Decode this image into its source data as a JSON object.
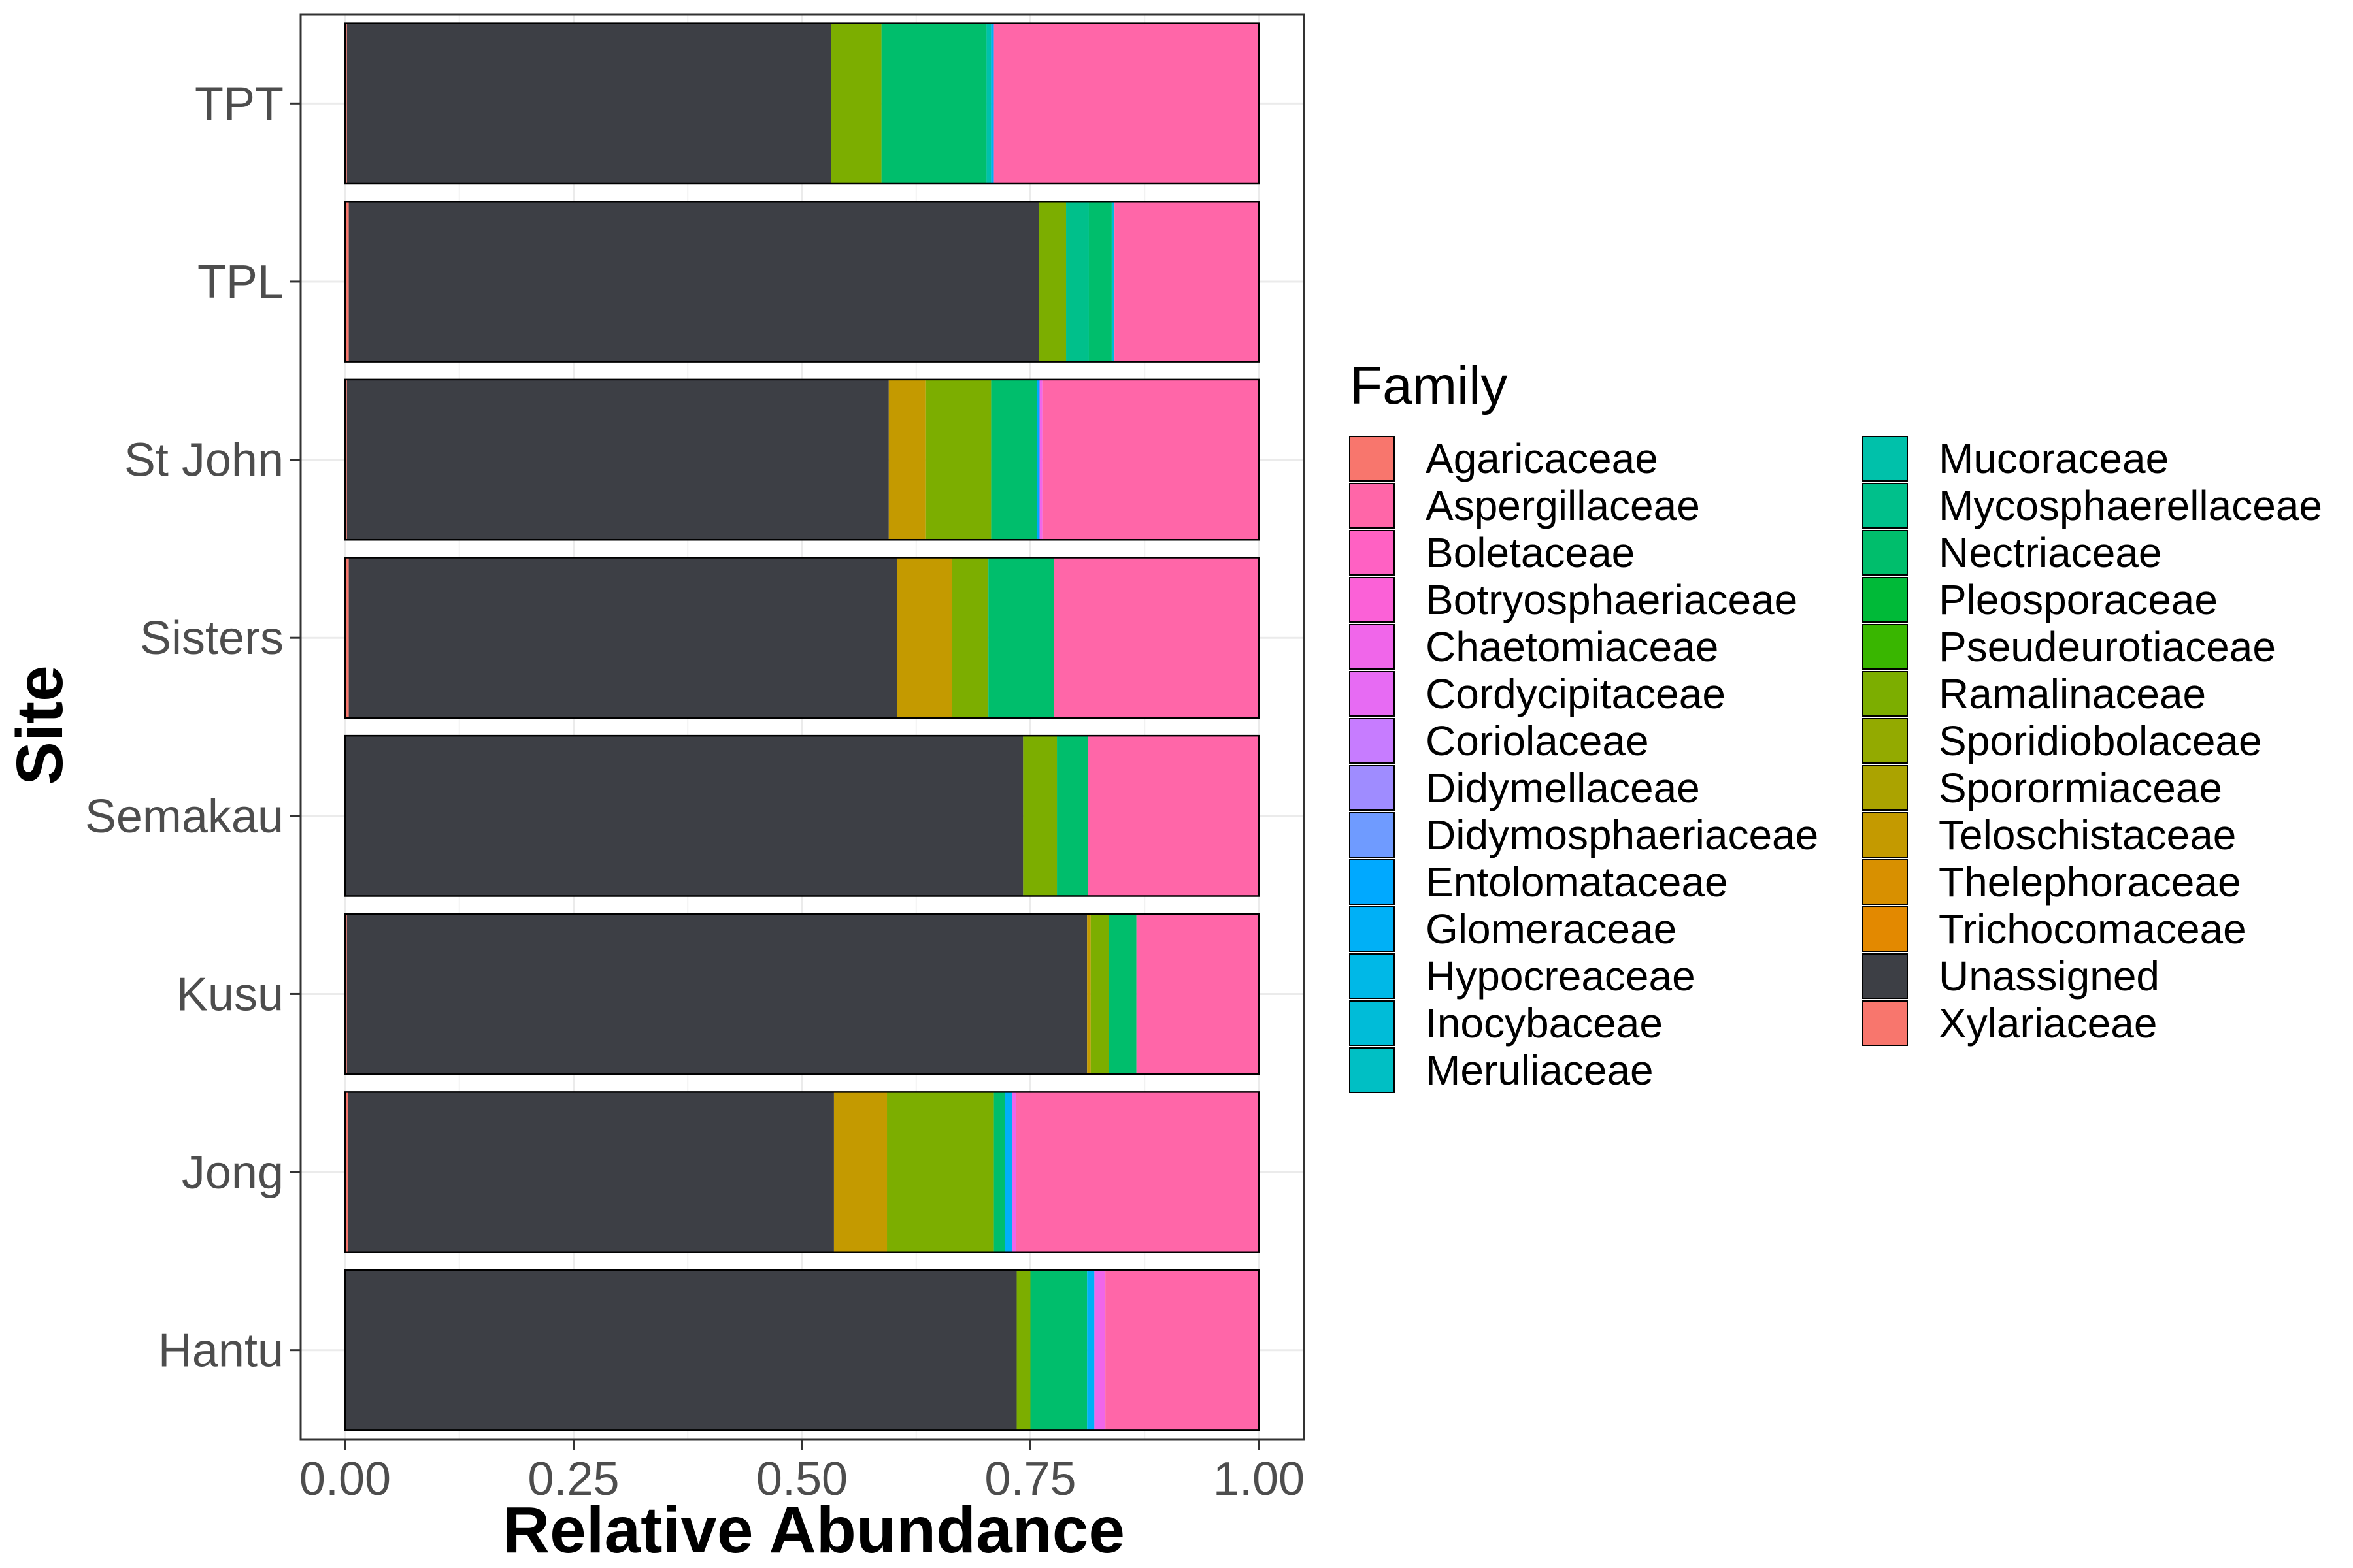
{
  "chart_data": {
    "type": "bar",
    "orientation": "horizontal",
    "stacked": true,
    "xlabel": "Relative Abundance",
    "ylabel": "Site",
    "xlim": [
      -0.05,
      1.05
    ],
    "xticks": [
      0.0,
      0.25,
      0.5,
      0.75,
      1.0
    ],
    "xtick_labels": [
      "0.00",
      "0.25",
      "0.50",
      "0.75",
      "1.00"
    ],
    "grid": true,
    "legend_position": "right",
    "legend_title": "Family",
    "categories": [
      "TPT",
      "TPL",
      "St John",
      "Sisters",
      "Semakau",
      "Kusu",
      "Jong",
      "Hantu"
    ],
    "families": [
      {
        "name": "Agaricaceae",
        "color": "#F8766D"
      },
      {
        "name": "Aspergillaceae",
        "color": "#FF66A8"
      },
      {
        "name": "Boletaceae",
        "color": "#FF61C3"
      },
      {
        "name": "Botryosphaeriaceae",
        "color": "#FB61D7"
      },
      {
        "name": "Chaetomiaceae",
        "color": "#F066EA"
      },
      {
        "name": "Cordycipitaceae",
        "color": "#E76BF3"
      },
      {
        "name": "Coriolaceae",
        "color": "#C77CFF"
      },
      {
        "name": "Didymellaceae",
        "color": "#9F8CFF"
      },
      {
        "name": "Didymosphaeriaceae",
        "color": "#6F9BFF"
      },
      {
        "name": "Entolomataceae",
        "color": "#00A9FF"
      },
      {
        "name": "Glomeraceae",
        "color": "#00B0F6"
      },
      {
        "name": "Hypocreaceae",
        "color": "#00B8E7"
      },
      {
        "name": "Inocybaceae",
        "color": "#00BCD8"
      },
      {
        "name": "Meruliaceae",
        "color": "#00BFC4"
      },
      {
        "name": "Mucoraceae",
        "color": "#00C1AA"
      },
      {
        "name": "Mycosphaerellaceae",
        "color": "#00C08B"
      },
      {
        "name": "Nectriaceae",
        "color": "#00BE6C"
      },
      {
        "name": "Pleosporaceae",
        "color": "#00BA38"
      },
      {
        "name": "Pseudeurotiaceae",
        "color": "#39B600"
      },
      {
        "name": "Ramalinaceae",
        "color": "#7CAE00"
      },
      {
        "name": "Sporidiobolaceae",
        "color": "#93AA00"
      },
      {
        "name": "Sporormiaceae",
        "color": "#ABA300"
      },
      {
        "name": "Teloschistaceae",
        "color": "#C49A00"
      },
      {
        "name": "Thelephoraceae",
        "color": "#D89000"
      },
      {
        "name": "Trichocomaceae",
        "color": "#E38900"
      },
      {
        "name": "Unassigned",
        "color": "#3D3F45"
      },
      {
        "name": "Xylariaceae",
        "color": "#F8766D"
      }
    ],
    "bars": [
      {
        "site": "TPT",
        "segments": [
          {
            "family": "Agaricaceae",
            "value": 0.002
          },
          {
            "family": "Unassigned",
            "value": 0.53
          },
          {
            "family": "Ramalinaceae",
            "value": 0.055
          },
          {
            "family": "Nectriaceae",
            "value": 0.115
          },
          {
            "family": "Mucoraceae",
            "value": 0.005
          },
          {
            "family": "Glomeraceae",
            "value": 0.003
          },
          {
            "family": "Aspergillaceae",
            "value": 0.29
          }
        ]
      },
      {
        "site": "TPL",
        "segments": [
          {
            "family": "Agaricaceae",
            "value": 0.004
          },
          {
            "family": "Unassigned",
            "value": 0.755
          },
          {
            "family": "Ramalinaceae",
            "value": 0.03
          },
          {
            "family": "Mycosphaerellaceae",
            "value": 0.025
          },
          {
            "family": "Nectriaceae",
            "value": 0.025
          },
          {
            "family": "Inocybaceae",
            "value": 0.003
          },
          {
            "family": "Aspergillaceae",
            "value": 0.158
          }
        ]
      },
      {
        "site": "St John",
        "segments": [
          {
            "family": "Agaricaceae",
            "value": 0.002
          },
          {
            "family": "Unassigned",
            "value": 0.593
          },
          {
            "family": "Teloschistaceae",
            "value": 0.04
          },
          {
            "family": "Ramalinaceae",
            "value": 0.072
          },
          {
            "family": "Nectriaceae",
            "value": 0.05
          },
          {
            "family": "Entolomataceae",
            "value": 0.003
          },
          {
            "family": "Chaetomiaceae",
            "value": 0.003
          },
          {
            "family": "Aspergillaceae",
            "value": 0.237
          }
        ]
      },
      {
        "site": "Sisters",
        "segments": [
          {
            "family": "Agaricaceae",
            "value": 0.004
          },
          {
            "family": "Unassigned",
            "value": 0.6
          },
          {
            "family": "Teloschistaceae",
            "value": 0.06
          },
          {
            "family": "Ramalinaceae",
            "value": 0.04
          },
          {
            "family": "Nectriaceae",
            "value": 0.072
          },
          {
            "family": "Aspergillaceae",
            "value": 0.224
          }
        ]
      },
      {
        "site": "Semakau",
        "segments": [
          {
            "family": "Unassigned",
            "value": 0.742
          },
          {
            "family": "Ramalinaceae",
            "value": 0.037
          },
          {
            "family": "Nectriaceae",
            "value": 0.034
          },
          {
            "family": "Aspergillaceae",
            "value": 0.187
          }
        ]
      },
      {
        "site": "Kusu",
        "segments": [
          {
            "family": "Agaricaceae",
            "value": 0.002
          },
          {
            "family": "Unassigned",
            "value": 0.81
          },
          {
            "family": "Teloschistaceae",
            "value": 0.004
          },
          {
            "family": "Ramalinaceae",
            "value": 0.02
          },
          {
            "family": "Nectriaceae",
            "value": 0.03
          },
          {
            "family": "Aspergillaceae",
            "value": 0.134
          }
        ]
      },
      {
        "site": "Jong",
        "segments": [
          {
            "family": "Agaricaceae",
            "value": 0.003
          },
          {
            "family": "Unassigned",
            "value": 0.532
          },
          {
            "family": "Teloschistaceae",
            "value": 0.058
          },
          {
            "family": "Ramalinaceae",
            "value": 0.117
          },
          {
            "family": "Nectriaceae",
            "value": 0.012
          },
          {
            "family": "Glomeraceae",
            "value": 0.008
          },
          {
            "family": "Chaetomiaceae",
            "value": 0.004
          },
          {
            "family": "Aspergillaceae",
            "value": 0.266
          }
        ]
      },
      {
        "site": "Hantu",
        "segments": [
          {
            "family": "Unassigned",
            "value": 0.735
          },
          {
            "family": "Ramalinaceae",
            "value": 0.015
          },
          {
            "family": "Nectriaceae",
            "value": 0.062
          },
          {
            "family": "Glomeraceae",
            "value": 0.008
          },
          {
            "family": "Chaetomiaceae",
            "value": 0.012
          },
          {
            "family": "Aspergillaceae",
            "value": 0.168
          }
        ]
      }
    ]
  }
}
